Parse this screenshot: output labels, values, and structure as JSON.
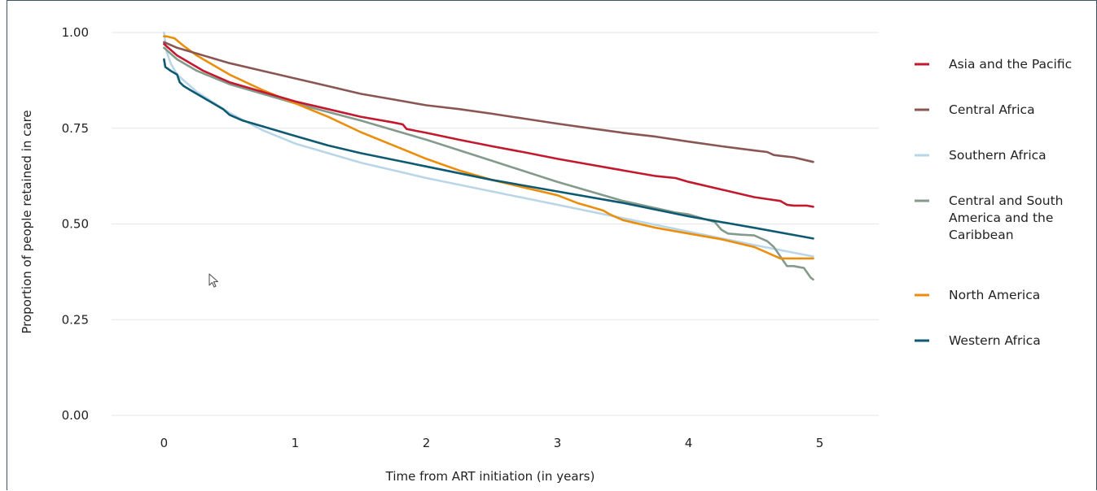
{
  "chart_data": {
    "type": "line",
    "title": "",
    "xlabel": "Time from ART initiation (in years)",
    "ylabel": "Proportion of people retained in care",
    "xlim": [
      -0.4,
      5.45
    ],
    "ylim": [
      0,
      1.0
    ],
    "x_ticks": [
      0,
      1,
      2,
      3,
      4,
      5
    ],
    "x_tick_labels": [
      "0",
      "1",
      "2",
      "3",
      "4",
      "5"
    ],
    "y_ticks": [
      0.0,
      0.25,
      0.5,
      0.75,
      1.0
    ],
    "y_tick_labels": [
      "0.00",
      "0.25",
      "0.50",
      "0.75",
      "1.00"
    ],
    "grid": "horizontal",
    "legend_position": "right",
    "series": [
      {
        "name": "Asia and the Pacific",
        "color": "#c2192f",
        "x": [
          0,
          0.1,
          0.3,
          0.5,
          0.75,
          1.0,
          1.25,
          1.5,
          1.75,
          1.82,
          1.85,
          2.0,
          2.25,
          2.5,
          2.75,
          3.0,
          3.25,
          3.5,
          3.75,
          3.9,
          4.0,
          4.25,
          4.5,
          4.6,
          4.7,
          4.75,
          4.8,
          4.9,
          4.95
        ],
        "y": [
          0.97,
          0.94,
          0.9,
          0.87,
          0.845,
          0.82,
          0.8,
          0.78,
          0.765,
          0.76,
          0.748,
          0.738,
          0.72,
          0.703,
          0.687,
          0.67,
          0.655,
          0.64,
          0.625,
          0.62,
          0.61,
          0.59,
          0.57,
          0.565,
          0.56,
          0.55,
          0.548,
          0.548,
          0.545
        ]
      },
      {
        "name": "Central Africa",
        "color": "#8a5653",
        "x": [
          0,
          0.1,
          0.25,
          0.5,
          0.75,
          1.0,
          1.25,
          1.5,
          1.75,
          2.0,
          2.25,
          2.5,
          2.75,
          3.0,
          3.25,
          3.5,
          3.75,
          4.0,
          4.25,
          4.5,
          4.6,
          4.65,
          4.7,
          4.8,
          4.95
        ],
        "y": [
          0.975,
          0.96,
          0.945,
          0.92,
          0.9,
          0.88,
          0.86,
          0.84,
          0.825,
          0.81,
          0.8,
          0.788,
          0.775,
          0.762,
          0.75,
          0.738,
          0.728,
          0.715,
          0.703,
          0.692,
          0.688,
          0.68,
          0.678,
          0.674,
          0.662
        ]
      },
      {
        "name": "Southern Africa",
        "color": "#b9d6e8",
        "x": [
          0,
          0.02,
          0.05,
          0.1,
          0.25,
          0.5,
          0.75,
          1.0,
          1.5,
          2.0,
          2.5,
          3.0,
          3.5,
          4.0,
          4.5,
          4.95
        ],
        "y": [
          1.0,
          0.95,
          0.92,
          0.89,
          0.845,
          0.79,
          0.745,
          0.71,
          0.66,
          0.62,
          0.585,
          0.55,
          0.515,
          0.48,
          0.445,
          0.415
        ]
      },
      {
        "name": "Central and South America and the Caribbean",
        "color": "#849a8b",
        "x": [
          0,
          0.1,
          0.25,
          0.5,
          0.75,
          1.0,
          1.5,
          2.0,
          2.5,
          3.0,
          3.5,
          3.9,
          4.0,
          4.1,
          4.2,
          4.25,
          4.3,
          4.4,
          4.5,
          4.6,
          4.65,
          4.7,
          4.75,
          4.8,
          4.88,
          4.9,
          4.93,
          4.95
        ],
        "y": [
          0.96,
          0.93,
          0.9,
          0.865,
          0.84,
          0.815,
          0.77,
          0.72,
          0.665,
          0.61,
          0.56,
          0.53,
          0.525,
          0.515,
          0.505,
          0.485,
          0.475,
          0.472,
          0.47,
          0.455,
          0.44,
          0.415,
          0.39,
          0.39,
          0.385,
          0.375,
          0.36,
          0.355
        ]
      },
      {
        "name": "North America",
        "color": "#ec8e0d",
        "x": [
          0,
          0.02,
          0.08,
          0.15,
          0.25,
          0.5,
          0.75,
          1.0,
          1.25,
          1.5,
          1.75,
          2.0,
          2.25,
          2.5,
          2.75,
          3.0,
          3.15,
          3.25,
          3.35,
          3.4,
          3.5,
          3.75,
          4.0,
          4.25,
          4.5,
          4.6,
          4.7,
          4.75,
          4.95
        ],
        "y": [
          0.99,
          0.99,
          0.985,
          0.965,
          0.94,
          0.89,
          0.85,
          0.815,
          0.78,
          0.74,
          0.705,
          0.67,
          0.64,
          0.615,
          0.595,
          0.575,
          0.555,
          0.545,
          0.535,
          0.525,
          0.51,
          0.49,
          0.475,
          0.46,
          0.44,
          0.425,
          0.41,
          0.41,
          0.41
        ]
      },
      {
        "name": "Western Africa",
        "color": "#0f5a73",
        "x": [
          0,
          0.01,
          0.03,
          0.05,
          0.1,
          0.12,
          0.15,
          0.2,
          0.3,
          0.4,
          0.45,
          0.5,
          0.6,
          0.75,
          1.0,
          1.25,
          1.5,
          2.0,
          2.5,
          3.0,
          3.5,
          4.0,
          4.5,
          4.95
        ],
        "y": [
          0.93,
          0.91,
          0.905,
          0.9,
          0.89,
          0.87,
          0.86,
          0.85,
          0.83,
          0.81,
          0.8,
          0.785,
          0.77,
          0.755,
          0.73,
          0.705,
          0.685,
          0.65,
          0.615,
          0.585,
          0.555,
          0.52,
          0.49,
          0.462
        ]
      }
    ]
  }
}
